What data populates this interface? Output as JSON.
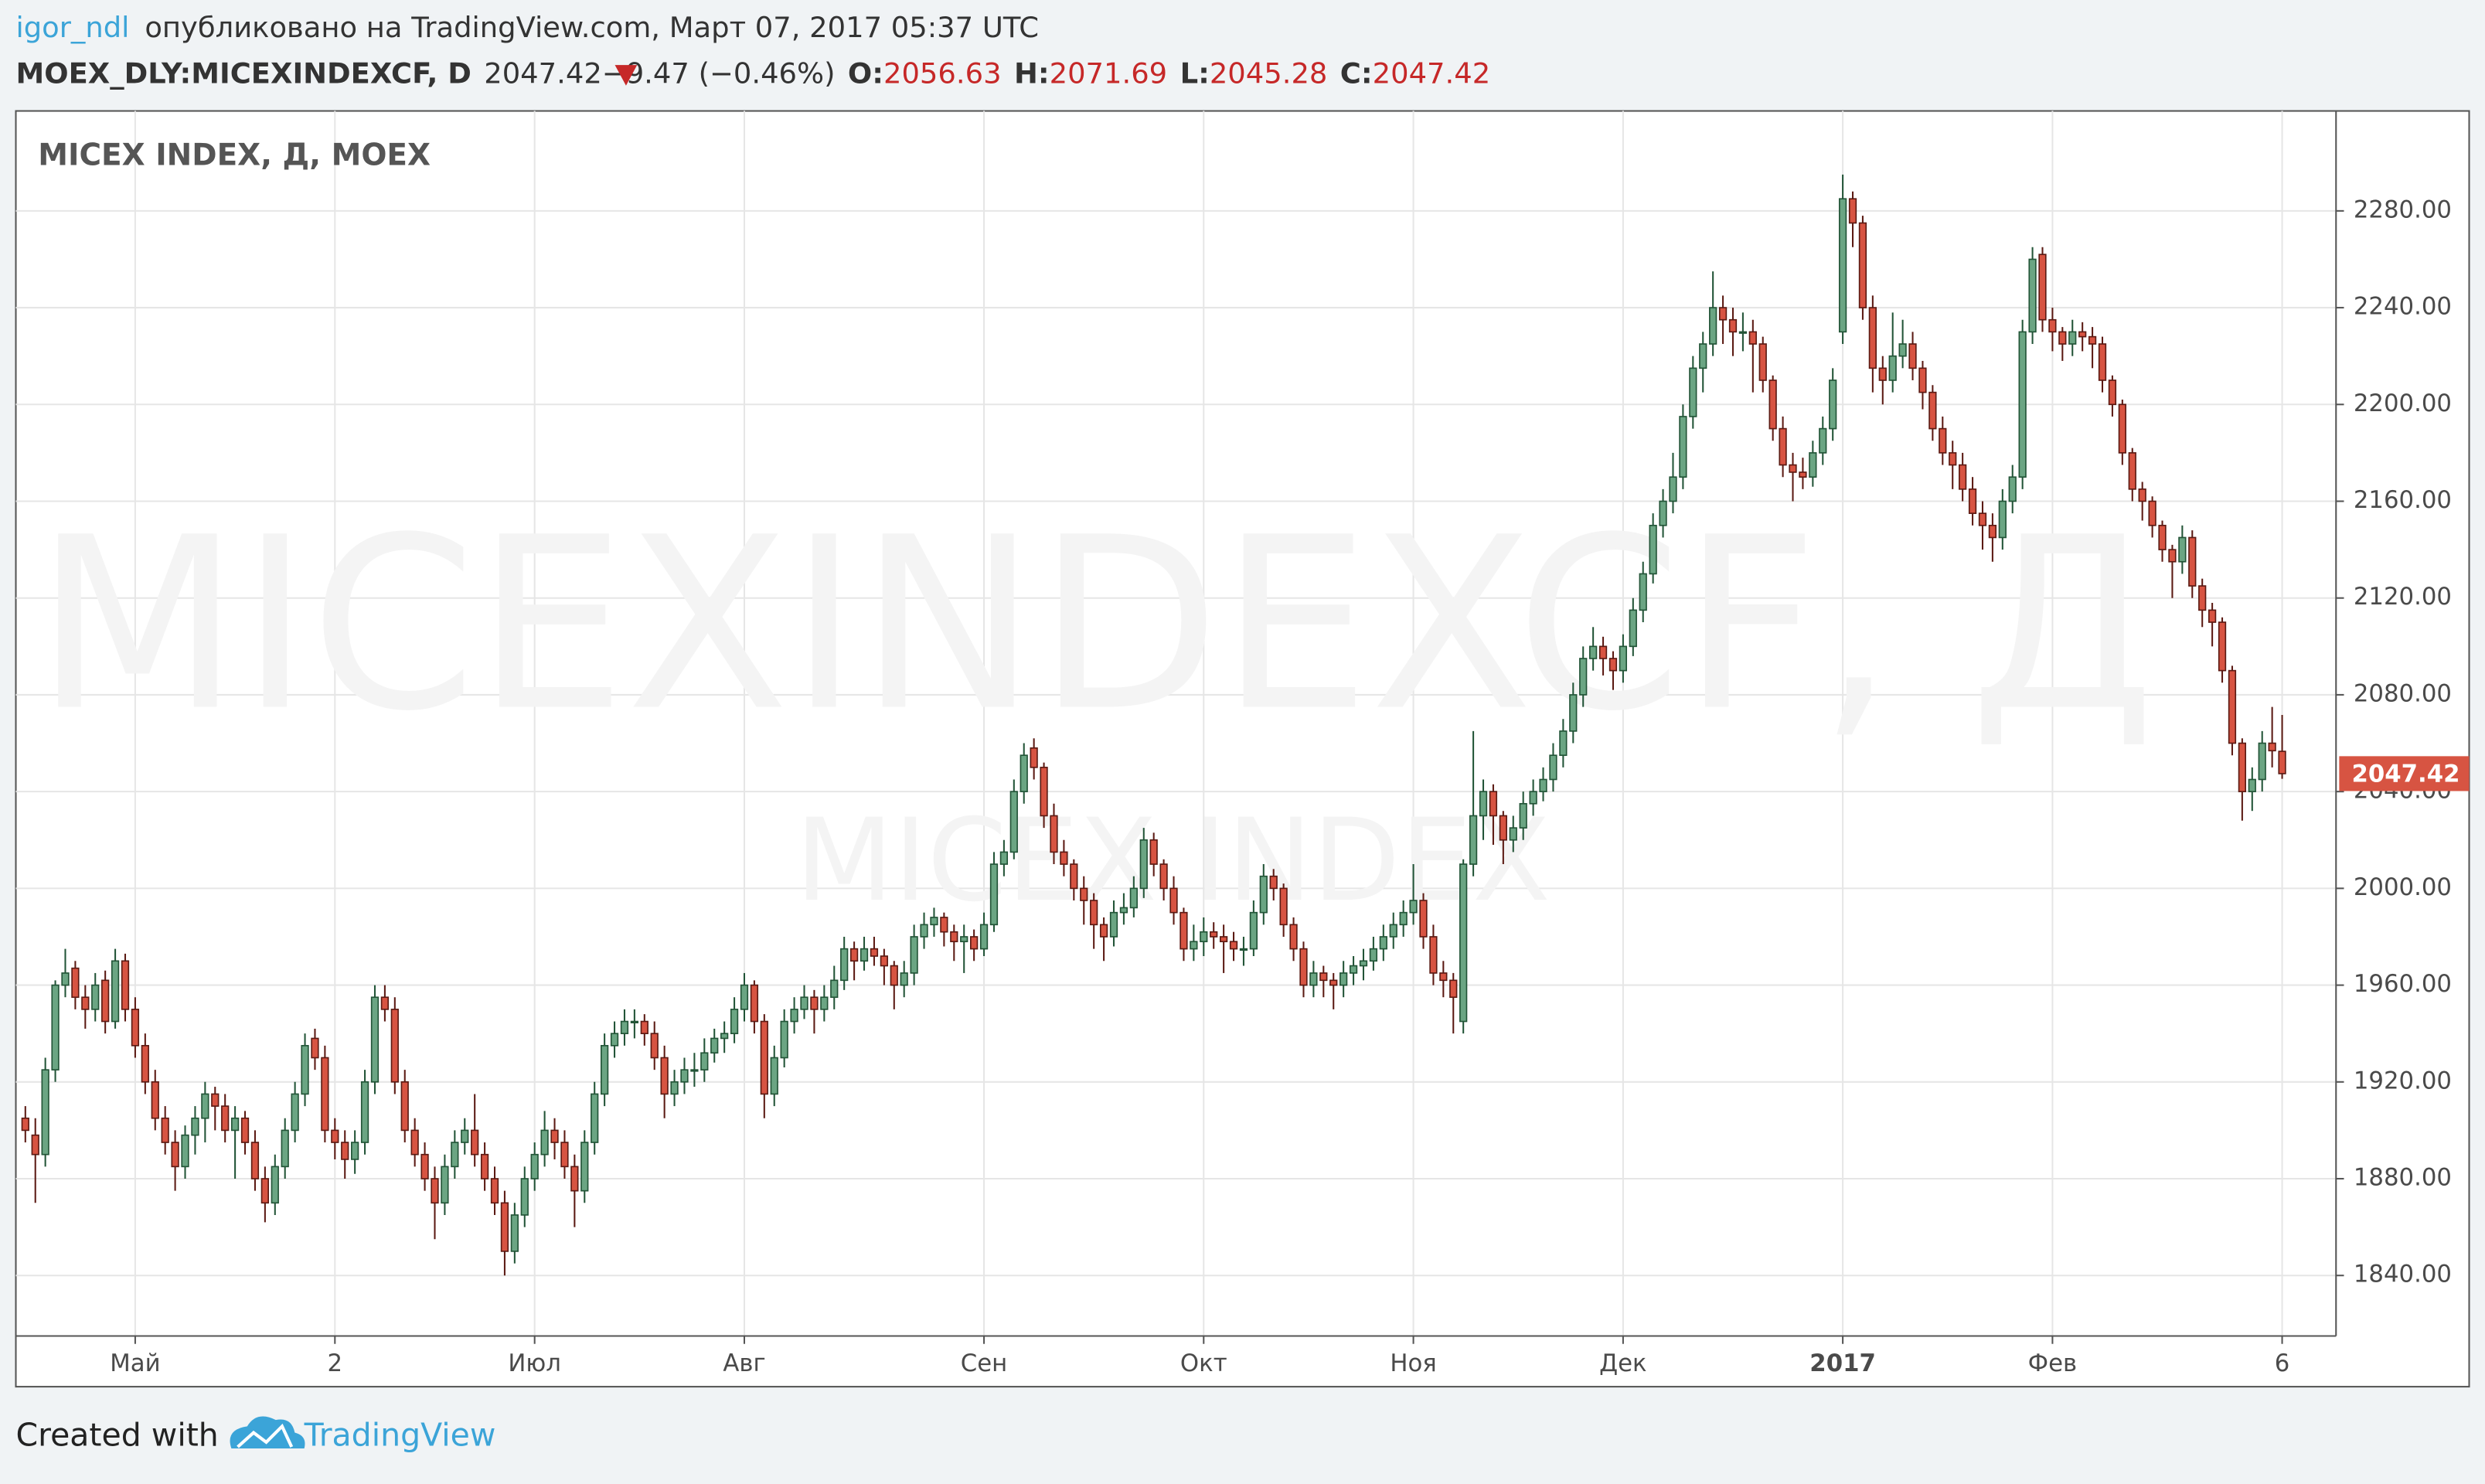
{
  "header": {
    "user": "igor_ndl",
    "published": "опубликовано на TradingView.com, Март 07, 2017 05:37 UTC",
    "symbol": "MOEX_DLY:MICEXINDEXCF, D",
    "change": "−9.47 (−0.46%)",
    "ohlc_labels": [
      "O:",
      "H:",
      "L:",
      "C:"
    ]
  },
  "footer": {
    "created": "Created with",
    "brand": "TradingView"
  },
  "chart_data": {
    "type": "candlestick",
    "title": "MICEX INDEX, Д, MOEX",
    "watermark": "MICEXINDEXCF, Д",
    "watermark_sub": "MICEX INDEX",
    "up_color": "#6ba583",
    "up_border": "#225437",
    "down_color": "#d75442",
    "down_border": "#5b1a13",
    "grid": true,
    "ylim": [
      1815,
      2320
    ],
    "yticks": [
      {
        "value": 1840,
        "label": "1840.00"
      },
      {
        "value": 1880,
        "label": "1880.00"
      },
      {
        "value": 1920,
        "label": "1920.00"
      },
      {
        "value": 1960,
        "label": "1960.00"
      },
      {
        "value": 2000,
        "label": "2000.00"
      },
      {
        "value": 2040,
        "label": "2040.00"
      },
      {
        "value": 2080,
        "label": "2080.00"
      },
      {
        "value": 2120,
        "label": "2120.00"
      },
      {
        "value": 2160,
        "label": "2160.00"
      },
      {
        "value": 2200,
        "label": "2200.00"
      },
      {
        "value": 2240,
        "label": "2240.00"
      },
      {
        "value": 2280,
        "label": "2280.00"
      }
    ],
    "xticks": [
      {
        "value": 11,
        "label": "Май"
      },
      {
        "value": 31,
        "label": "2"
      },
      {
        "value": 51,
        "label": "Июл"
      },
      {
        "value": 72,
        "label": "Авг"
      },
      {
        "value": 96,
        "label": "Сен"
      },
      {
        "value": 118,
        "label": "Окт"
      },
      {
        "value": 139,
        "label": "Ноя"
      },
      {
        "value": 160,
        "label": "Дек"
      },
      {
        "value": 182,
        "label": "2017"
      },
      {
        "value": 203,
        "label": "Фев"
      },
      {
        "value": 226,
        "label": "6"
      }
    ],
    "candles": [
      [
        1905,
        1910,
        1895,
        1900
      ],
      [
        1898,
        1905,
        1870,
        1890
      ],
      [
        1890,
        1930,
        1885,
        1925
      ],
      [
        1925,
        1962,
        1920,
        1960
      ],
      [
        1960,
        1975,
        1955,
        1965
      ],
      [
        1967,
        1970,
        1950,
        1955
      ],
      [
        1955,
        1960,
        1942,
        1950
      ],
      [
        1950,
        1965,
        1945,
        1960
      ],
      [
        1962,
        1966,
        1940,
        1945
      ],
      [
        1945,
        1975,
        1942,
        1970
      ],
      [
        1970,
        1973,
        1945,
        1950
      ],
      [
        1950,
        1955,
        1930,
        1935
      ],
      [
        1935,
        1940,
        1915,
        1920
      ],
      [
        1920,
        1925,
        1900,
        1905
      ],
      [
        1905,
        1910,
        1890,
        1895
      ],
      [
        1895,
        1900,
        1875,
        1885
      ],
      [
        1885,
        1902,
        1880,
        1898
      ],
      [
        1898,
        1910,
        1890,
        1905
      ],
      [
        1905,
        1920,
        1895,
        1915
      ],
      [
        1915,
        1918,
        1900,
        1910
      ],
      [
        1910,
        1915,
        1895,
        1900
      ],
      [
        1900,
        1910,
        1880,
        1905
      ],
      [
        1905,
        1908,
        1890,
        1895
      ],
      [
        1895,
        1900,
        1875,
        1880
      ],
      [
        1880,
        1885,
        1862,
        1870
      ],
      [
        1870,
        1890,
        1865,
        1885
      ],
      [
        1885,
        1905,
        1880,
        1900
      ],
      [
        1900,
        1920,
        1895,
        1915
      ],
      [
        1915,
        1940,
        1910,
        1935
      ],
      [
        1938,
        1942,
        1925,
        1930
      ],
      [
        1930,
        1935,
        1895,
        1900
      ],
      [
        1900,
        1905,
        1888,
        1895
      ],
      [
        1895,
        1900,
        1880,
        1888
      ],
      [
        1888,
        1900,
        1882,
        1895
      ],
      [
        1895,
        1925,
        1890,
        1920
      ],
      [
        1920,
        1960,
        1915,
        1955
      ],
      [
        1955,
        1960,
        1945,
        1950
      ],
      [
        1950,
        1955,
        1915,
        1920
      ],
      [
        1920,
        1925,
        1895,
        1900
      ],
      [
        1900,
        1905,
        1885,
        1890
      ],
      [
        1890,
        1895,
        1875,
        1880
      ],
      [
        1880,
        1885,
        1855,
        1870
      ],
      [
        1870,
        1890,
        1865,
        1885
      ],
      [
        1885,
        1900,
        1880,
        1895
      ],
      [
        1895,
        1905,
        1890,
        1900
      ],
      [
        1900,
        1915,
        1885,
        1890
      ],
      [
        1890,
        1895,
        1875,
        1880
      ],
      [
        1880,
        1885,
        1865,
        1870
      ],
      [
        1870,
        1875,
        1840,
        1850
      ],
      [
        1850,
        1870,
        1845,
        1865
      ],
      [
        1865,
        1885,
        1860,
        1880
      ],
      [
        1880,
        1895,
        1875,
        1890
      ],
      [
        1890,
        1908,
        1885,
        1900
      ],
      [
        1900,
        1905,
        1888,
        1895
      ],
      [
        1895,
        1900,
        1880,
        1885
      ],
      [
        1885,
        1890,
        1860,
        1875
      ],
      [
        1875,
        1900,
        1870,
        1895
      ],
      [
        1895,
        1920,
        1890,
        1915
      ],
      [
        1915,
        1940,
        1910,
        1935
      ],
      [
        1935,
        1945,
        1930,
        1940
      ],
      [
        1940,
        1950,
        1935,
        1945
      ],
      [
        1945,
        1950,
        1938,
        1945
      ],
      [
        1945,
        1948,
        1935,
        1940
      ],
      [
        1940,
        1945,
        1925,
        1930
      ],
      [
        1930,
        1935,
        1905,
        1915
      ],
      [
        1915,
        1925,
        1910,
        1920
      ],
      [
        1920,
        1930,
        1915,
        1925
      ],
      [
        1925,
        1932,
        1918,
        1925
      ],
      [
        1925,
        1938,
        1920,
        1932
      ],
      [
        1932,
        1942,
        1928,
        1938
      ],
      [
        1938,
        1945,
        1932,
        1940
      ],
      [
        1940,
        1955,
        1936,
        1950
      ],
      [
        1950,
        1965,
        1945,
        1960
      ],
      [
        1960,
        1962,
        1940,
        1945
      ],
      [
        1945,
        1948,
        1905,
        1915
      ],
      [
        1915,
        1935,
        1910,
        1930
      ],
      [
        1930,
        1950,
        1926,
        1945
      ],
      [
        1945,
        1955,
        1940,
        1950
      ],
      [
        1950,
        1960,
        1946,
        1955
      ],
      [
        1955,
        1958,
        1940,
        1950
      ],
      [
        1950,
        1960,
        1945,
        1955
      ],
      [
        1955,
        1968,
        1950,
        1962
      ],
      [
        1962,
        1980,
        1958,
        1975
      ],
      [
        1975,
        1978,
        1962,
        1970
      ],
      [
        1970,
        1980,
        1966,
        1975
      ],
      [
        1975,
        1980,
        1968,
        1972
      ],
      [
        1972,
        1975,
        1960,
        1968
      ],
      [
        1968,
        1970,
        1950,
        1960
      ],
      [
        1960,
        1970,
        1955,
        1965
      ],
      [
        1965,
        1985,
        1960,
        1980
      ],
      [
        1980,
        1990,
        1975,
        1985
      ],
      [
        1985,
        1992,
        1980,
        1988
      ],
      [
        1988,
        1990,
        1976,
        1982
      ],
      [
        1982,
        1985,
        1970,
        1978
      ],
      [
        1978,
        1985,
        1965,
        1980
      ],
      [
        1980,
        1983,
        1970,
        1975
      ],
      [
        1975,
        1990,
        1972,
        1985
      ],
      [
        1985,
        2015,
        1982,
        2010
      ],
      [
        2010,
        2020,
        2005,
        2015
      ],
      [
        2015,
        2045,
        2012,
        2040
      ],
      [
        2040,
        2060,
        2035,
        2055
      ],
      [
        2058,
        2062,
        2045,
        2050
      ],
      [
        2050,
        2052,
        2025,
        2030
      ],
      [
        2030,
        2035,
        2010,
        2015
      ],
      [
        2015,
        2020,
        2005,
        2010
      ],
      [
        2010,
        2012,
        1995,
        2000
      ],
      [
        2000,
        2005,
        1985,
        1995
      ],
      [
        1995,
        1998,
        1975,
        1985
      ],
      [
        1985,
        1988,
        1970,
        1980
      ],
      [
        1980,
        1995,
        1976,
        1990
      ],
      [
        1990,
        1998,
        1985,
        1992
      ],
      [
        1992,
        2005,
        1988,
        2000
      ],
      [
        2000,
        2025,
        1996,
        2020
      ],
      [
        2020,
        2023,
        2005,
        2010
      ],
      [
        2010,
        2012,
        1995,
        2000
      ],
      [
        2000,
        2005,
        1985,
        1990
      ],
      [
        1990,
        1992,
        1970,
        1975
      ],
      [
        1975,
        1985,
        1970,
        1978
      ],
      [
        1978,
        1988,
        1972,
        1982
      ],
      [
        1982,
        1986,
        1975,
        1980
      ],
      [
        1980,
        1985,
        1965,
        1978
      ],
      [
        1978,
        1982,
        1970,
        1975
      ],
      [
        1975,
        1980,
        1968,
        1975
      ],
      [
        1975,
        1995,
        1972,
        1990
      ],
      [
        1990,
        2010,
        1985,
        2005
      ],
      [
        2005,
        2008,
        1995,
        2000
      ],
      [
        2000,
        2002,
        1980,
        1985
      ],
      [
        1985,
        1988,
        1970,
        1975
      ],
      [
        1975,
        1978,
        1955,
        1960
      ],
      [
        1960,
        1970,
        1955,
        1965
      ],
      [
        1965,
        1968,
        1955,
        1962
      ],
      [
        1962,
        1965,
        1950,
        1960
      ],
      [
        1960,
        1970,
        1955,
        1965
      ],
      [
        1965,
        1972,
        1960,
        1968
      ],
      [
        1968,
        1975,
        1962,
        1970
      ],
      [
        1970,
        1980,
        1966,
        1975
      ],
      [
        1975,
        1985,
        1970,
        1980
      ],
      [
        1980,
        1990,
        1975,
        1985
      ],
      [
        1985,
        1995,
        1980,
        1990
      ],
      [
        1990,
        2010,
        1985,
        1995
      ],
      [
        1995,
        1998,
        1975,
        1980
      ],
      [
        1980,
        1985,
        1960,
        1965
      ],
      [
        1965,
        1970,
        1955,
        1962
      ],
      [
        1962,
        1965,
        1940,
        1955
      ],
      [
        1945,
        2012,
        1940,
        2010
      ],
      [
        2010,
        2065,
        2005,
        2030
      ],
      [
        2030,
        2045,
        2020,
        2040
      ],
      [
        2040,
        2043,
        2018,
        2030
      ],
      [
        2030,
        2032,
        2010,
        2020
      ],
      [
        2020,
        2030,
        2015,
        2025
      ],
      [
        2025,
        2040,
        2020,
        2035
      ],
      [
        2035,
        2045,
        2030,
        2040
      ],
      [
        2040,
        2050,
        2036,
        2045
      ],
      [
        2045,
        2060,
        2040,
        2055
      ],
      [
        2055,
        2070,
        2050,
        2065
      ],
      [
        2065,
        2085,
        2060,
        2080
      ],
      [
        2080,
        2100,
        2075,
        2095
      ],
      [
        2095,
        2108,
        2090,
        2100
      ],
      [
        2100,
        2104,
        2088,
        2095
      ],
      [
        2095,
        2098,
        2082,
        2090
      ],
      [
        2090,
        2105,
        2085,
        2100
      ],
      [
        2100,
        2120,
        2096,
        2115
      ],
      [
        2115,
        2135,
        2110,
        2130
      ],
      [
        2130,
        2155,
        2126,
        2150
      ],
      [
        2150,
        2165,
        2145,
        2160
      ],
      [
        2160,
        2180,
        2155,
        2170
      ],
      [
        2170,
        2200,
        2165,
        2195
      ],
      [
        2195,
        2220,
        2190,
        2215
      ],
      [
        2215,
        2230,
        2205,
        2225
      ],
      [
        2225,
        2255,
        2220,
        2240
      ],
      [
        2240,
        2245,
        2225,
        2235
      ],
      [
        2235,
        2240,
        2220,
        2230
      ],
      [
        2230,
        2238,
        2222,
        2230
      ],
      [
        2230,
        2235,
        2205,
        2225
      ],
      [
        2225,
        2228,
        2205,
        2210
      ],
      [
        2210,
        2212,
        2185,
        2190
      ],
      [
        2190,
        2195,
        2170,
        2175
      ],
      [
        2175,
        2180,
        2160,
        2172
      ],
      [
        2172,
        2178,
        2165,
        2170
      ],
      [
        2170,
        2185,
        2166,
        2180
      ],
      [
        2180,
        2195,
        2175,
        2190
      ],
      [
        2190,
        2215,
        2185,
        2210
      ],
      [
        2230,
        2295,
        2225,
        2285
      ],
      [
        2285,
        2288,
        2265,
        2275
      ],
      [
        2275,
        2278,
        2235,
        2240
      ],
      [
        2240,
        2245,
        2205,
        2215
      ],
      [
        2215,
        2220,
        2200,
        2210
      ],
      [
        2210,
        2238,
        2205,
        2220
      ],
      [
        2220,
        2235,
        2215,
        2225
      ],
      [
        2225,
        2230,
        2210,
        2215
      ],
      [
        2215,
        2218,
        2198,
        2205
      ],
      [
        2205,
        2208,
        2185,
        2190
      ],
      [
        2190,
        2195,
        2175,
        2180
      ],
      [
        2180,
        2185,
        2165,
        2175
      ],
      [
        2175,
        2180,
        2160,
        2165
      ],
      [
        2165,
        2170,
        2150,
        2155
      ],
      [
        2155,
        2160,
        2140,
        2150
      ],
      [
        2150,
        2155,
        2135,
        2145
      ],
      [
        2145,
        2165,
        2140,
        2160
      ],
      [
        2160,
        2175,
        2155,
        2170
      ],
      [
        2170,
        2235,
        2165,
        2230
      ],
      [
        2230,
        2265,
        2225,
        2260
      ],
      [
        2262,
        2265,
        2230,
        2235
      ],
      [
        2235,
        2240,
        2222,
        2230
      ],
      [
        2230,
        2232,
        2218,
        2225
      ],
      [
        2225,
        2235,
        2220,
        2230
      ],
      [
        2230,
        2234,
        2222,
        2228
      ],
      [
        2228,
        2232,
        2215,
        2225
      ],
      [
        2225,
        2228,
        2205,
        2210
      ],
      [
        2210,
        2212,
        2195,
        2200
      ],
      [
        2200,
        2202,
        2175,
        2180
      ],
      [
        2180,
        2182,
        2160,
        2165
      ],
      [
        2165,
        2168,
        2152,
        2160
      ],
      [
        2160,
        2162,
        2145,
        2150
      ],
      [
        2150,
        2152,
        2135,
        2140
      ],
      [
        2140,
        2142,
        2120,
        2135
      ],
      [
        2135,
        2150,
        2130,
        2145
      ],
      [
        2145,
        2148,
        2120,
        2125
      ],
      [
        2125,
        2128,
        2108,
        2115
      ],
      [
        2115,
        2118,
        2100,
        2110
      ],
      [
        2110,
        2112,
        2085,
        2090
      ],
      [
        2090,
        2092,
        2055,
        2060
      ],
      [
        2060,
        2062,
        2028,
        2040
      ],
      [
        2040,
        2050,
        2032,
        2045
      ],
      [
        2045,
        2065,
        2040,
        2060
      ],
      [
        2060,
        2075,
        2050,
        2056.89
      ],
      [
        2056.63,
        2071.69,
        2045.28,
        2047.42
      ]
    ]
  }
}
